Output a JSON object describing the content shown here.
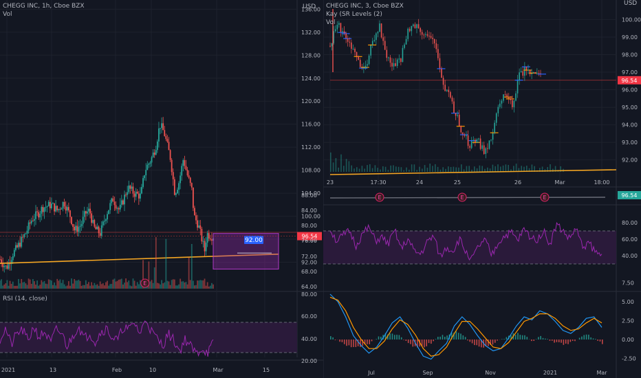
{
  "colors": {
    "background": "#131722",
    "grid": "#1e222d",
    "up": "#26a69a",
    "down": "#ef5350",
    "trendline": "#f5a623",
    "rsi": "#9c27b0",
    "rsi_band": "#2a1a3a",
    "price_tag": "#f23645",
    "target_tag": "#2962ff",
    "macd": "#2196f3",
    "signal": "#ff9800"
  },
  "left_panel": {
    "header": {
      "symbol": "CHEGG INC, 1h, Cboe BZX",
      "vol_label": "Vol"
    },
    "rsi_header": "RSI (14, close)",
    "earnings_marker": "E"
  },
  "right_panel": {
    "header": {
      "symbol": "CHEGG INC, 3, Cboe BZX",
      "indicator": "Kay (SR Levels (2)",
      "vol_label": "Vol"
    },
    "currency_label": "USD",
    "earnings_marker": "E"
  },
  "chart_data": [
    {
      "id": "left-price",
      "type": "candlestick",
      "title": "CHEGG INC, 1h, Cboe BZX",
      "x_ticks": [
        "2021",
        "13",
        "Feb",
        "10",
        "Mar",
        "15"
      ],
      "y_ticks": [
        92.0,
        96.0,
        100.0,
        104.0,
        108.0,
        112.0,
        116.0,
        120.0,
        124.0,
        128.0,
        132.0,
        136.0
      ],
      "ylim": [
        88,
        137
      ],
      "current_price": "96.54",
      "target_label": "92.00",
      "support_level": 97.2,
      "trendline": {
        "start": [
          0,
          91.8
        ],
        "end": [
          1,
          93.4
        ]
      },
      "price_path": [
        [
          0,
          92.5
        ],
        [
          0.03,
          91.0
        ],
        [
          0.06,
          93.5
        ],
        [
          0.08,
          94.5
        ],
        [
          0.12,
          97.0
        ],
        [
          0.15,
          99.5
        ],
        [
          0.18,
          100.5
        ],
        [
          0.2,
          101.5
        ],
        [
          0.24,
          102.0
        ],
        [
          0.27,
          101.0
        ],
        [
          0.3,
          102.5
        ],
        [
          0.33,
          100.0
        ],
        [
          0.35,
          97.5
        ],
        [
          0.38,
          98.5
        ],
        [
          0.4,
          100.5
        ],
        [
          0.42,
          101.0
        ],
        [
          0.44,
          98.0
        ],
        [
          0.47,
          97.0
        ],
        [
          0.5,
          100.5
        ],
        [
          0.53,
          103.0
        ],
        [
          0.56,
          101.0
        ],
        [
          0.6,
          105.0
        ],
        [
          0.63,
          104.0
        ],
        [
          0.66,
          103.5
        ],
        [
          0.68,
          108.0
        ],
        [
          0.71,
          110.0
        ],
        [
          0.73,
          112.0
        ],
        [
          0.75,
          116.0
        ],
        [
          0.77,
          114.5
        ],
        [
          0.8,
          110.0
        ],
        [
          0.82,
          104.0
        ],
        [
          0.84,
          106.0
        ],
        [
          0.86,
          110.0
        ],
        [
          0.88,
          107.0
        ],
        [
          0.9,
          104.5
        ],
        [
          0.91,
          100.0
        ],
        [
          0.93,
          98.5
        ],
        [
          0.95,
          95.5
        ],
        [
          0.96,
          94.0
        ],
        [
          0.97,
          97.0
        ],
        [
          0.99,
          96.54
        ]
      ],
      "volume_title": "Vol",
      "earnings_at": 0.68
    },
    {
      "id": "left-rsi",
      "type": "line",
      "title": "RSI (14, close)",
      "band": [
        30,
        70
      ],
      "values": [
        48,
        62,
        40,
        55,
        60,
        45,
        65,
        50,
        58,
        42,
        60,
        55,
        38,
        52,
        66,
        48,
        56,
        44,
        58,
        62,
        50,
        46,
        64,
        60,
        70,
        54,
        76,
        58,
        48,
        40,
        55,
        46,
        32,
        48,
        38,
        28,
        36,
        30,
        42
      ]
    },
    {
      "id": "right-price",
      "type": "candlestick",
      "title": "CHEGG INC, 3, Cboe BZX",
      "x_ticks": [
        "23",
        "17:30",
        "24",
        "25",
        "26",
        "Mar",
        "18:00"
      ],
      "y_ticks": [
        92.0,
        93.0,
        94.0,
        95.0,
        96.0,
        97.0,
        98.0,
        99.0,
        100.0
      ],
      "ylim": [
        91.4,
        100.8
      ],
      "current_price": "96.54",
      "price_path": [
        [
          0,
          98.5
        ],
        [
          0.03,
          99.8
        ],
        [
          0.06,
          99.2
        ],
        [
          0.09,
          98.4
        ],
        [
          0.12,
          97.6
        ],
        [
          0.15,
          97.2
        ],
        [
          0.18,
          98.8
        ],
        [
          0.21,
          99.7
        ],
        [
          0.24,
          98.0
        ],
        [
          0.27,
          97.3
        ],
        [
          0.3,
          97.6
        ],
        [
          0.33,
          99.2
        ],
        [
          0.36,
          99.8
        ],
        [
          0.39,
          99.4
        ],
        [
          0.42,
          99.0
        ],
        [
          0.45,
          98.6
        ],
        [
          0.48,
          96.6
        ],
        [
          0.51,
          95.5
        ],
        [
          0.54,
          94.5
        ],
        [
          0.57,
          93.4
        ],
        [
          0.6,
          92.8
        ],
        [
          0.63,
          93.1
        ],
        [
          0.66,
          92.5
        ],
        [
          0.69,
          93.2
        ],
        [
          0.72,
          95.0
        ],
        [
          0.75,
          96.0
        ],
        [
          0.78,
          95.0
        ],
        [
          0.81,
          96.8
        ],
        [
          0.84,
          97.2
        ],
        [
          0.87,
          97.0
        ],
        [
          0.9,
          96.8
        ]
      ],
      "volume_title": "Vol"
    },
    {
      "id": "right-rsi",
      "type": "line",
      "y_ticks": [
        40.0,
        60.0,
        80.0
      ],
      "band": [
        30,
        70
      ],
      "x_ticks": [
        "Jul",
        "Sep",
        "Nov",
        "2021",
        "Mar"
      ],
      "values": [
        72,
        58,
        64,
        70,
        52,
        66,
        74,
        58,
        62,
        54,
        70,
        48,
        60,
        45,
        42,
        56,
        64,
        38,
        50,
        46,
        60,
        44,
        36,
        52,
        58,
        40,
        56,
        64,
        68,
        58,
        72,
        62,
        60,
        70,
        54,
        78,
        70,
        60,
        74,
        50,
        56,
        44,
        40
      ],
      "earnings_at": [
        0.18,
        0.48,
        0.78
      ]
    },
    {
      "id": "right-macd",
      "type": "line",
      "y_ticks": [
        -2.5,
        0.0,
        2.5,
        5.0,
        7.5
      ],
      "series": [
        {
          "name": "",
          "values": [
            6.0,
            5.0,
            3.0,
            0.5,
            -0.8,
            -1.8,
            -1.0,
            0.5,
            2.2,
            3.0,
            1.5,
            -0.5,
            -2.2,
            -2.6,
            -1.5,
            -0.5,
            1.8,
            3.0,
            2.0,
            0.5,
            -0.8,
            -1.5,
            -1.2,
            0.2,
            1.8,
            3.0,
            2.6,
            3.8,
            3.4,
            2.4,
            1.2,
            0.8,
            1.6,
            2.8,
            3.0,
            1.6
          ]
        },
        {
          "name": "",
          "values": [
            5.6,
            5.2,
            3.8,
            1.6,
            0.0,
            -1.2,
            -1.2,
            -0.2,
            1.4,
            2.6,
            2.0,
            0.6,
            -1.2,
            -2.2,
            -2.0,
            -1.0,
            0.8,
            2.4,
            2.4,
            1.4,
            0.2,
            -1.0,
            -1.2,
            -0.4,
            1.0,
            2.4,
            2.8,
            3.4,
            3.4,
            2.8,
            1.8,
            1.2,
            1.4,
            2.2,
            2.8,
            2.2
          ]
        }
      ],
      "histogram": [
        0.4,
        -0.2,
        -0.8,
        -1.1,
        -0.8,
        -0.6,
        0.2,
        0.7,
        0.8,
        0.4,
        -0.5,
        -1.1,
        -1.0,
        -0.4,
        0.5,
        0.5,
        1.0,
        0.6,
        -0.4,
        -0.9,
        -1.0,
        -0.5,
        0.0,
        0.6,
        0.8,
        0.6,
        -0.2,
        0.4,
        0.0,
        -0.4,
        -0.6,
        -0.4,
        0.2,
        0.6,
        0.2,
        -0.6
      ]
    }
  ]
}
